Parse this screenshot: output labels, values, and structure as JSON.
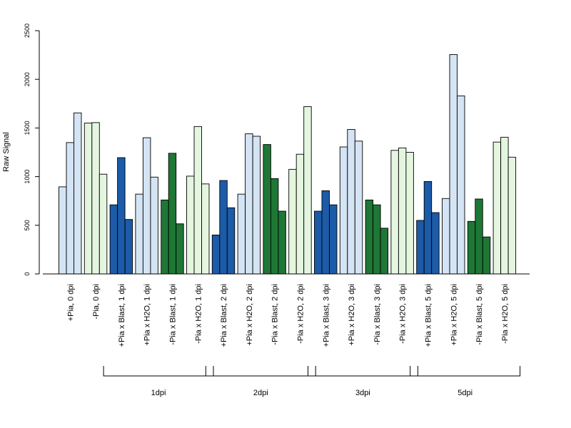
{
  "chart_data": {
    "type": "bar",
    "title": "",
    "xlabel": "",
    "ylabel": "Raw Signal",
    "ylim": [
      0,
      2500
    ],
    "yticks": [
      0,
      500,
      1000,
      1500,
      2000,
      2500
    ],
    "grid": false,
    "categories": [
      "+Pia, 0 dpi",
      "-Pia, 0 dpi",
      "+Pia x Blast, 1 dpi",
      "+Pia x H2O, 1 dpi",
      "-Pia x Blast, 1 dpi",
      "-Pia x H2O, 1 dpi",
      "+Pia x Blast, 2 dpi",
      "+Pia x H2O, 2 dpi",
      "-Pia x Blast, 2 dpi",
      "-Pia x H2O, 2 dpi",
      "+Pia x Blast, 3 dpi",
      "+Pia x H2O, 3 dpi",
      "-Pia x Blast, 3 dpi",
      "-Pia x H2O, 3 dpi",
      "+Pia x Blast, 5 dpi",
      "+Pia x H2O, 5 dpi",
      "-Pia x Blast, 5 dpi",
      "-Pia x H2O, 5 dpi"
    ],
    "colors": [
      "#d4e4f4",
      "#e4f6df",
      "#1c5ba8",
      "#d4e4f4",
      "#1e7735",
      "#e4f6df",
      "#1c5ba8",
      "#d4e4f4",
      "#1e7735",
      "#e4f6df",
      "#1c5ba8",
      "#d4e4f4",
      "#1e7735",
      "#e4f6df",
      "#1c5ba8",
      "#d4e4f4",
      "#1e7735",
      "#e4f6df"
    ],
    "replicates": [
      [
        895,
        1350,
        1655
      ],
      [
        1550,
        1555,
        1025
      ],
      [
        710,
        1195,
        560
      ],
      [
        820,
        1400,
        995
      ],
      [
        760,
        1240,
        515
      ],
      [
        1005,
        1515,
        925
      ],
      [
        400,
        960,
        680
      ],
      [
        820,
        1440,
        1415
      ],
      [
        1330,
        980,
        645
      ],
      [
        1075,
        1230,
        1720
      ],
      [
        645,
        855,
        710
      ],
      [
        1305,
        1485,
        1365
      ],
      [
        760,
        710,
        470
      ],
      [
        1270,
        1295,
        1250
      ],
      [
        550,
        950,
        630
      ],
      [
        775,
        2255,
        1830
      ],
      [
        540,
        770,
        380
      ],
      [
        1355,
        1405,
        1200
      ]
    ],
    "groups": [
      {
        "label": "1dpi",
        "from": 2,
        "to": 5
      },
      {
        "label": "2dpi",
        "from": 6,
        "to": 9
      },
      {
        "label": "3dpi",
        "from": 10,
        "to": 13
      },
      {
        "label": "5dpi",
        "from": 14,
        "to": 17
      }
    ]
  }
}
